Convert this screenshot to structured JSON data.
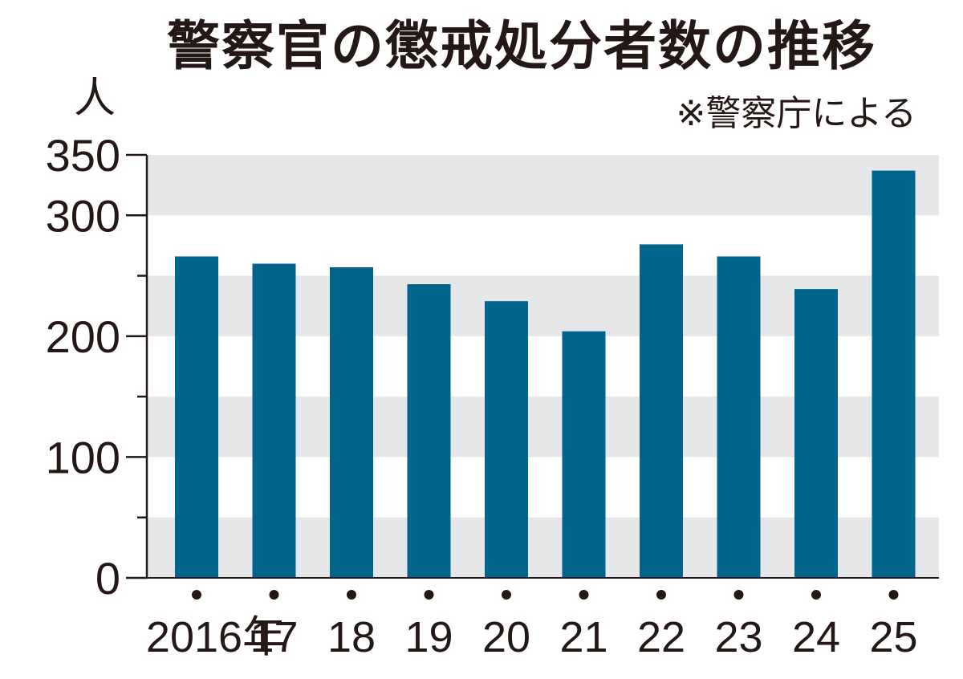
{
  "chart_data": {
    "type": "bar",
    "title": "警察官の懲戒処分者数の推移",
    "note": "※警察庁による",
    "ylabel": "人",
    "categories": [
      "2016年",
      "17",
      "18",
      "19",
      "20",
      "21",
      "22",
      "23",
      "24",
      "25"
    ],
    "values": [
      266,
      260,
      257,
      243,
      229,
      204,
      276,
      266,
      239,
      337
    ],
    "ylim": [
      0,
      350
    ],
    "yticks": [
      0,
      100,
      200,
      300,
      350
    ],
    "grid": "alternating horizontal bands",
    "bar_color": "#00648c",
    "band_color": "#e6e7e8"
  }
}
